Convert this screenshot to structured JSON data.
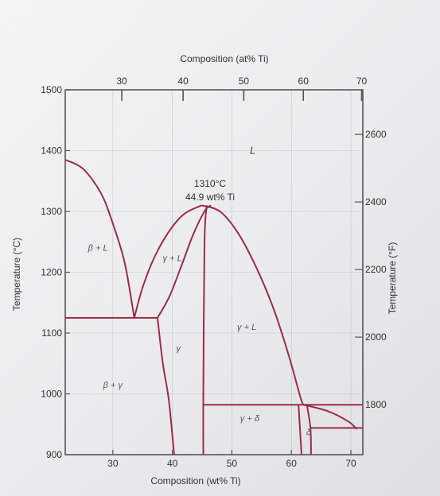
{
  "chart_data": {
    "type": "phase-diagram",
    "title": "",
    "xlabel_bottom": "Composition (wt% Ti)",
    "xlabel_top": "Composition (at% Ti)",
    "ylabel_left": "Temperature (°C)",
    "ylabel_right": "Temperature (°F)",
    "xlim_wt": [
      22,
      72
    ],
    "ylim_C": [
      900,
      1500
    ],
    "bottom_ticks_wt": [
      30,
      40,
      50,
      60,
      70
    ],
    "left_ticks_C": [
      900,
      1000,
      1100,
      1200,
      1300,
      1400,
      1500
    ],
    "top_ticks": [
      {
        "label": "30",
        "wt": 31.5
      },
      {
        "label": "40",
        "wt": 41.8
      },
      {
        "label": "50",
        "wt": 52.0
      },
      {
        "label": "60",
        "wt": 62.0
      },
      {
        "label": "70",
        "wt": 71.8
      }
    ],
    "right_ticks_F": [
      1800,
      2000,
      2200,
      2400,
      2600
    ],
    "annotation": {
      "line1": "1310°C",
      "line2": "44.9 wt% Ti",
      "wt": 44.9,
      "T": 1310
    },
    "regions": [
      {
        "label": "L",
        "wt": 53.5,
        "T": 1395
      },
      {
        "label": "β + L",
        "wt": 27.5,
        "T": 1235
      },
      {
        "label": "γ + L",
        "wt": 40.0,
        "T": 1218
      },
      {
        "label": "γ + L",
        "wt": 52.5,
        "T": 1105
      },
      {
        "label": "γ",
        "wt": 41.0,
        "T": 1070
      },
      {
        "label": "β + γ",
        "wt": 30.0,
        "T": 1010
      },
      {
        "label": "γ + δ",
        "wt": 53.0,
        "T": 955
      },
      {
        "label": "δ",
        "wt": 62.9,
        "T": 932
      }
    ],
    "curves": [
      {
        "name": "beta-liquidus",
        "points": [
          [
            22,
            1385
          ],
          [
            25,
            1370
          ],
          [
            28,
            1330
          ],
          [
            30,
            1280
          ],
          [
            32,
            1215
          ],
          [
            33.6,
            1125
          ]
        ]
      },
      {
        "name": "gamma-solidus-left",
        "points": [
          [
            37.5,
            1125
          ],
          [
            39.5,
            1160
          ],
          [
            41.5,
            1210
          ],
          [
            43.5,
            1262
          ],
          [
            45.5,
            1302
          ],
          [
            46.5,
            1310
          ]
        ]
      },
      {
        "name": "gamma-liquidus-left",
        "points": [
          [
            33.6,
            1125
          ],
          [
            35,
            1175
          ],
          [
            37,
            1225
          ],
          [
            39.5,
            1268
          ],
          [
            42,
            1296
          ],
          [
            44.9,
            1310
          ]
        ]
      },
      {
        "name": "gamma-liquidus-right",
        "points": [
          [
            44.9,
            1310
          ],
          [
            48,
            1300
          ],
          [
            51,
            1265
          ],
          [
            54,
            1210
          ],
          [
            57,
            1140
          ],
          [
            59.5,
            1065
          ],
          [
            61.5,
            995
          ],
          [
            62,
            982
          ]
        ]
      },
      {
        "name": "gamma-solidus-right",
        "points": [
          [
            45.8,
            1310
          ],
          [
            45.4,
            1250
          ],
          [
            45.2,
            1000
          ],
          [
            45.2,
            900
          ]
        ]
      },
      {
        "name": "eutectic-isotherm",
        "points": [
          [
            22,
            1125
          ],
          [
            37.5,
            1125
          ]
        ]
      },
      {
        "name": "gamma-beta-solvus",
        "points": [
          [
            37.5,
            1125
          ],
          [
            38.4,
            1050
          ],
          [
            39.4,
            990
          ],
          [
            40.3,
            900
          ]
        ]
      },
      {
        "name": "peritectic-isotherm",
        "points": [
          [
            45.2,
            982
          ],
          [
            72,
            982
          ]
        ]
      },
      {
        "name": "delta-liquidus",
        "points": [
          [
            62,
            982
          ],
          [
            66,
            972
          ],
          [
            69.5,
            955
          ],
          [
            71,
            942
          ]
        ]
      },
      {
        "name": "delta-phase-left",
        "points": [
          [
            61.2,
            982
          ],
          [
            61.7,
            900
          ]
        ]
      },
      {
        "name": "delta-phase-right",
        "points": [
          [
            62.6,
            982
          ],
          [
            63.2,
            944
          ],
          [
            63.3,
            900
          ]
        ]
      },
      {
        "name": "delta-lower-boundary",
        "points": [
          [
            63.2,
            944
          ],
          [
            72,
            944
          ]
        ]
      }
    ]
  }
}
